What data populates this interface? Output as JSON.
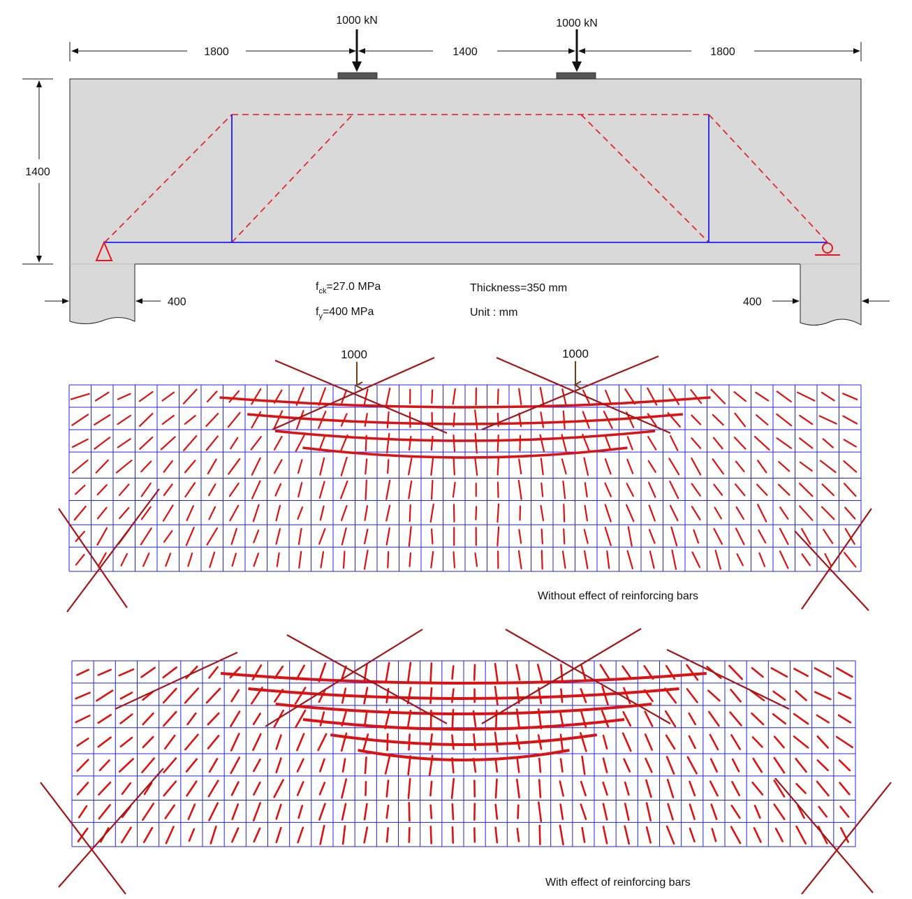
{
  "beam": {
    "load_label_left": "1000 kN",
    "load_label_right": "1000 kN",
    "dim_left": "1800",
    "dim_mid": "1400",
    "dim_right": "1800",
    "dim_height": "1400",
    "support_left": "400",
    "support_right": "400",
    "fck_main": "f",
    "fck_sub": "ck",
    "fck_value": "=27.0 MPa",
    "fy_main": "f",
    "fy_sub": "y",
    "fy_value": "=400 MPa",
    "thickness": "Thickness=350 mm",
    "unit": "Unit : mm"
  },
  "panel_without": {
    "load_left": "1000",
    "load_right": "1000",
    "caption": "Without effect of reinforcing bars"
  },
  "panel_with": {
    "caption": "With effect of reinforcing bars"
  },
  "colors": {
    "concrete": "#d9d9d9",
    "strut": "#e8141c",
    "tie": "#1a1aff",
    "mesh": "#2020ee",
    "crack": "#dd1111",
    "crack_dark": "#a51414",
    "arrow_load": "#7a3a10"
  }
}
